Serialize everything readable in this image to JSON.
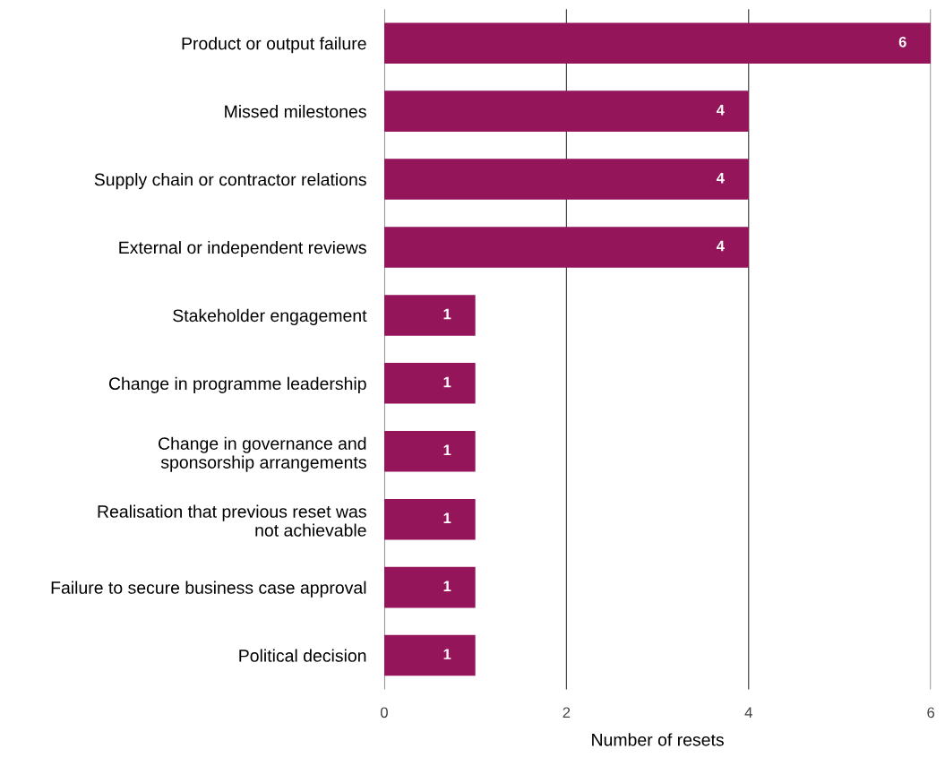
{
  "chart_data": {
    "type": "bar",
    "orientation": "horizontal",
    "xlabel": "Number of resets",
    "categories": [
      "Product or output failure",
      "Missed milestones",
      "Supply chain or contractor relations",
      "External or independent reviews",
      "Stakeholder engagement",
      "Change in programme leadership",
      "Change in governance and\nsponsorship arrangements",
      "Realisation that previous reset was\nnot achievable",
      "Failure to secure business case approval",
      "Political decision"
    ],
    "values": [
      6,
      4,
      4,
      4,
      1,
      1,
      1,
      1,
      1,
      1
    ],
    "color": "#95155a",
    "xlim": [
      0,
      6
    ],
    "xticks": [
      0,
      2,
      4,
      6
    ],
    "grid": "x",
    "data_labels": true
  }
}
